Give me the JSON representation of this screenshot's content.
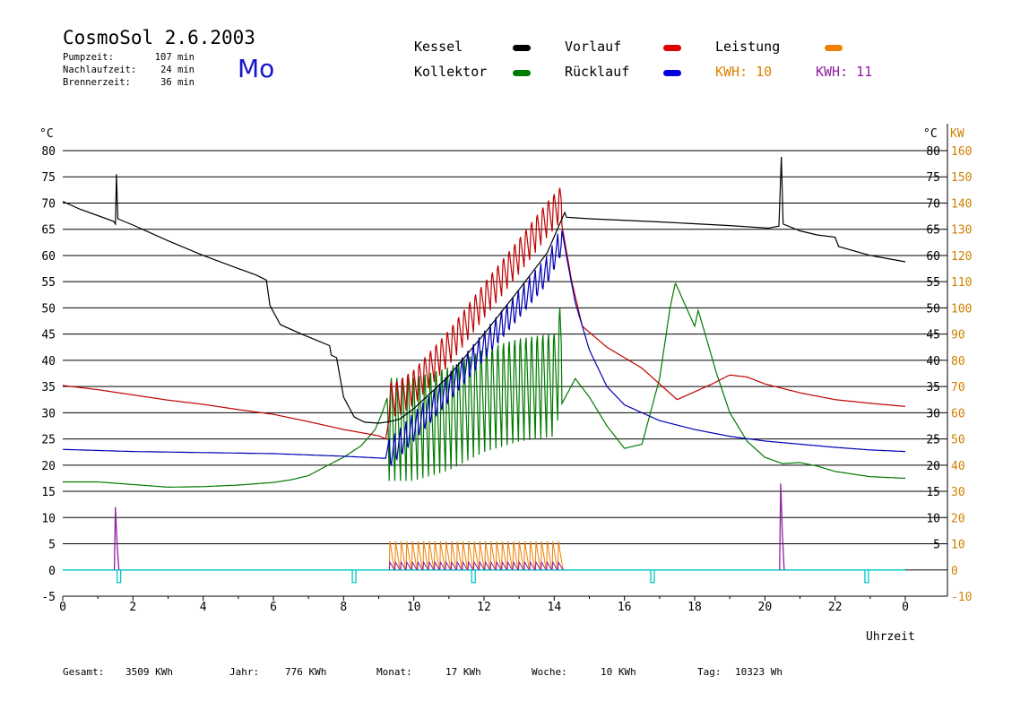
{
  "header": {
    "title": "CosmoSol 2.6.2003",
    "day": "Mo",
    "stats": [
      {
        "label": "Pumpzeit:",
        "value": "107 min"
      },
      {
        "label": "Nachlaufzeit:",
        "value": "24 min"
      },
      {
        "label": "Brennerzeit:",
        "value": "36 min"
      }
    ]
  },
  "legend": {
    "kessel": "Kessel",
    "kollektor": "Kollektor",
    "vorlauf": "Vorlauf",
    "ruecklauf": "Rücklauf",
    "leistung": "Leistung",
    "kwh_a": "KWH: 10",
    "kwh_b": "KWH: 11"
  },
  "footer": {
    "gesamt_label": "Gesamt:",
    "gesamt_value": "3509 KWh",
    "jahr_label": "Jahr:",
    "jahr_value": "776 KWh",
    "monat_label": "Monat:",
    "monat_value": "17 KWh",
    "woche_label": "Woche:",
    "woche_value": "10 KWh",
    "tag_label": "Tag:",
    "tag_value": "10323 Wh"
  },
  "colors": {
    "kessel": "#000000",
    "kollektor": "#007a00",
    "vorlauf": "#c00000",
    "ruecklauf": "#0000b4",
    "leistung": "#f08000",
    "kwh_b": "#9020a0",
    "pump": "#00c8c8",
    "axis_right": "#d08000"
  },
  "chart_data": {
    "type": "line",
    "xlabel": "Uhrzeit",
    "xlim": [
      0,
      24
    ],
    "x_ticks": [
      "0",
      "2",
      "4",
      "6",
      "8",
      "10",
      "12",
      "14",
      "16",
      "18",
      "20",
      "22",
      "0"
    ],
    "y_left_unit": "°C",
    "y_left_ticks": [
      "80",
      "75",
      "70",
      "65",
      "60",
      "55",
      "50",
      "45",
      "40",
      "35",
      "30",
      "25",
      "20",
      "15",
      "10",
      "5",
      "0",
      "-5"
    ],
    "ylim_left": [
      -5,
      80
    ],
    "y_right_unit_c": "°C",
    "y_right_unit_kw": "KW",
    "y_right_c_ticks": [
      "80",
      "75",
      "70",
      "65",
      "60",
      "55",
      "50",
      "45",
      "40",
      "35",
      "30",
      "25",
      "20",
      "15",
      "10",
      "5"
    ],
    "y_right_kw_ticks": [
      "160",
      "150",
      "140",
      "130",
      "120",
      "110",
      "100",
      "90",
      "80",
      "70",
      "60",
      "50",
      "40",
      "30",
      "20",
      "10",
      "0",
      "-10"
    ],
    "ylim_right_kw": [
      -10,
      160
    ],
    "grid": true,
    "series": [
      {
        "name": "Kessel",
        "color": "#000000",
        "points": [
          [
            0,
            70.3
          ],
          [
            0.5,
            68.8
          ],
          [
            1.0,
            67.6
          ],
          [
            1.45,
            66.5
          ],
          [
            1.5,
            66.0
          ],
          [
            1.53,
            75.5
          ],
          [
            1.57,
            67.0
          ],
          [
            2.0,
            65.8
          ],
          [
            3.0,
            62.8
          ],
          [
            4.0,
            60.0
          ],
          [
            5.0,
            57.5
          ],
          [
            5.5,
            56.3
          ],
          [
            5.8,
            55.3
          ],
          [
            5.9,
            50.5
          ],
          [
            6.2,
            46.8
          ],
          [
            6.8,
            45.0
          ],
          [
            7.6,
            42.8
          ],
          [
            7.65,
            41.0
          ],
          [
            7.8,
            40.5
          ],
          [
            8.0,
            33.0
          ],
          [
            8.3,
            29.2
          ],
          [
            8.6,
            28.2
          ],
          [
            9.0,
            28.0
          ],
          [
            9.3,
            28.3
          ],
          [
            9.6,
            28.8
          ],
          [
            10.0,
            30.8
          ],
          [
            11.0,
            37.0
          ],
          [
            12.0,
            45.0
          ],
          [
            13.0,
            53.5
          ],
          [
            13.8,
            60.5
          ],
          [
            14.2,
            66.7
          ],
          [
            14.3,
            68.2
          ],
          [
            14.35,
            67.3
          ],
          [
            15.0,
            67.0
          ],
          [
            17.0,
            66.4
          ],
          [
            19.0,
            65.7
          ],
          [
            20.1,
            65.2
          ],
          [
            20.4,
            65.6
          ],
          [
            20.47,
            78.8
          ],
          [
            20.52,
            66.0
          ],
          [
            21.0,
            64.7
          ],
          [
            21.5,
            63.9
          ],
          [
            22.0,
            63.5
          ],
          [
            22.1,
            61.7
          ],
          [
            23.0,
            60.0
          ],
          [
            24.0,
            58.8
          ]
        ]
      },
      {
        "name": "Vorlauf",
        "color": "#c00000",
        "points": [
          [
            0,
            35.2
          ],
          [
            1.0,
            34.4
          ],
          [
            2.0,
            33.4
          ],
          [
            3.0,
            32.4
          ],
          [
            4.0,
            31.6
          ],
          [
            5.0,
            30.6
          ],
          [
            6.0,
            29.7
          ],
          [
            7.0,
            28.3
          ],
          [
            8.0,
            26.8
          ],
          [
            9.0,
            25.6
          ],
          [
            9.2,
            25.0
          ],
          [
            9.3,
            29.0
          ],
          [
            9.6,
            29.6
          ],
          [
            10.0,
            31.5
          ],
          [
            11.0,
            39.0
          ],
          [
            12.0,
            48.0
          ],
          [
            13.0,
            56.5
          ],
          [
            13.8,
            63.5
          ],
          [
            14.2,
            66.5
          ],
          [
            14.5,
            55.0
          ],
          [
            14.8,
            46.5
          ],
          [
            15.5,
            42.5
          ],
          [
            16.0,
            40.5
          ],
          [
            16.5,
            38.5
          ],
          [
            17.0,
            35.5
          ],
          [
            17.5,
            32.5
          ],
          [
            18.0,
            34.0
          ],
          [
            18.5,
            35.5
          ],
          [
            19.0,
            37.2
          ],
          [
            19.5,
            36.8
          ],
          [
            20.0,
            35.5
          ],
          [
            21.0,
            33.8
          ],
          [
            22.0,
            32.5
          ],
          [
            23.0,
            31.8
          ],
          [
            24.0,
            31.2
          ]
        ],
        "spikes": {
          "from": 9.3,
          "to": 14.2,
          "step": 0.16,
          "amplitude": 7.5
        }
      },
      {
        "name": "Rücklauf",
        "color": "#0000b4",
        "points": [
          [
            0,
            23.0
          ],
          [
            2.0,
            22.6
          ],
          [
            4.0,
            22.4
          ],
          [
            6.0,
            22.2
          ],
          [
            8.0,
            21.7
          ],
          [
            9.2,
            21.3
          ],
          [
            9.3,
            25.0
          ],
          [
            9.6,
            27.0
          ],
          [
            10.0,
            30.0
          ],
          [
            11.0,
            37.5
          ],
          [
            12.0,
            45.5
          ],
          [
            13.0,
            53.5
          ],
          [
            13.8,
            60.0
          ],
          [
            14.2,
            65.5
          ],
          [
            14.4,
            58.0
          ],
          [
            14.6,
            51.0
          ],
          [
            15.0,
            42.0
          ],
          [
            15.5,
            35.0
          ],
          [
            16.0,
            31.5
          ],
          [
            17.0,
            28.5
          ],
          [
            18.0,
            26.8
          ],
          [
            19.0,
            25.5
          ],
          [
            20.0,
            24.6
          ],
          [
            21.0,
            24.0
          ],
          [
            22.0,
            23.4
          ],
          [
            23.0,
            22.9
          ],
          [
            24.0,
            22.6
          ]
        ],
        "spikes": {
          "from": 9.3,
          "to": 14.2,
          "step": 0.16,
          "amplitude": -6.0
        }
      },
      {
        "name": "Kollektor",
        "color": "#007a00",
        "points": [
          [
            0,
            16.8
          ],
          [
            1.0,
            16.8
          ],
          [
            2.0,
            16.3
          ],
          [
            3.0,
            15.8
          ],
          [
            4.0,
            15.9
          ],
          [
            5.0,
            16.2
          ],
          [
            6.0,
            16.7
          ],
          [
            6.5,
            17.2
          ],
          [
            7.0,
            18.0
          ],
          [
            7.5,
            19.8
          ],
          [
            8.0,
            21.5
          ],
          [
            8.5,
            23.7
          ],
          [
            8.9,
            26.8
          ],
          [
            9.1,
            30.0
          ],
          [
            9.25,
            33.0
          ],
          [
            9.3,
            17.0
          ],
          [
            10.0,
            17.0
          ],
          [
            11.0,
            19.0
          ],
          [
            12.0,
            22.5
          ],
          [
            13.0,
            24.5
          ],
          [
            14.0,
            25.5
          ],
          [
            14.2,
            31.5
          ],
          [
            14.6,
            36.5
          ],
          [
            15.0,
            33.0
          ],
          [
            15.5,
            27.5
          ],
          [
            16.0,
            23.2
          ],
          [
            16.5,
            24.0
          ],
          [
            17.0,
            36.5
          ],
          [
            17.3,
            50.0
          ],
          [
            17.45,
            54.8
          ],
          [
            17.7,
            51.0
          ],
          [
            18.0,
            46.5
          ],
          [
            18.1,
            49.5
          ],
          [
            18.3,
            45.0
          ],
          [
            18.6,
            38.0
          ],
          [
            19.0,
            30.0
          ],
          [
            19.5,
            24.5
          ],
          [
            20.0,
            21.5
          ],
          [
            20.5,
            20.3
          ],
          [
            21.0,
            20.5
          ],
          [
            21.5,
            19.8
          ],
          [
            22.0,
            18.8
          ],
          [
            23.0,
            17.8
          ],
          [
            24.0,
            17.5
          ]
        ],
        "spikes": {
          "from": 9.3,
          "to": 14.2,
          "step": 0.16,
          "amplitude": 22.0
        }
      },
      {
        "name": "Leistung",
        "color": "#f08000",
        "bursts": {
          "from": 9.3,
          "to": 14.2,
          "step": 0.16,
          "peak_kw": 11.0
        }
      },
      {
        "name": "KWH: 11",
        "color": "#9020a0",
        "spikes_kw": [
          [
            1.5,
            24.0
          ],
          [
            20.45,
            33.0
          ]
        ],
        "bursts": {
          "from": 9.3,
          "to": 14.2,
          "step": 0.16,
          "peak_kw": 3.0
        }
      },
      {
        "name": "Pump",
        "color": "#00c8c8",
        "pulses": [
          1.6,
          8.3,
          11.7,
          16.8,
          22.9
        ]
      }
    ]
  }
}
